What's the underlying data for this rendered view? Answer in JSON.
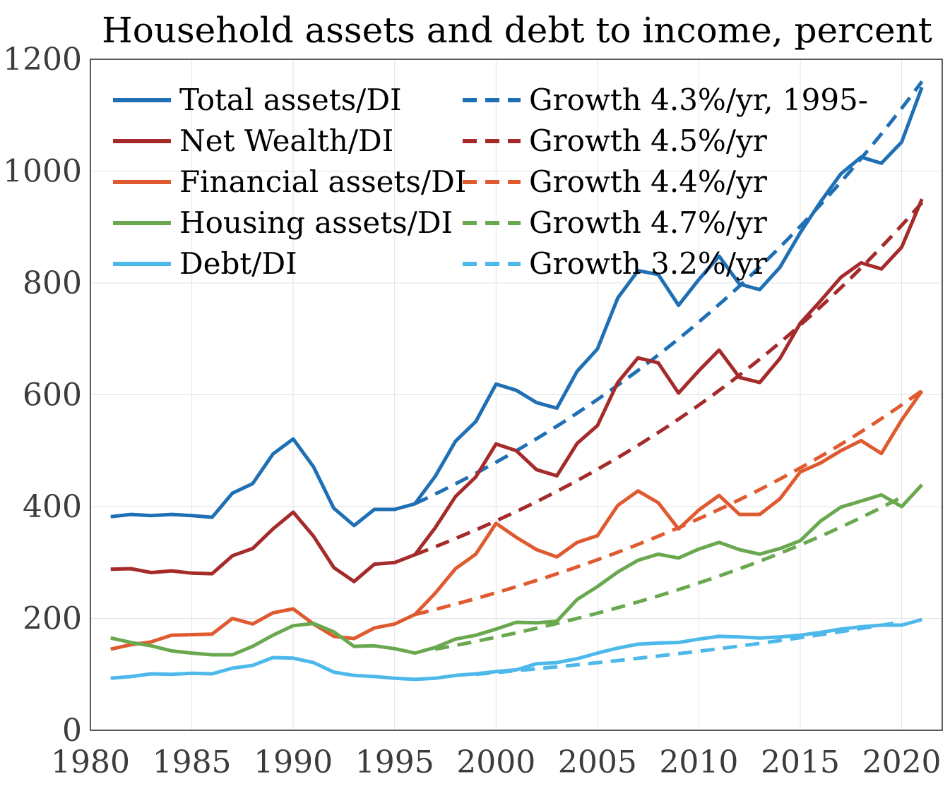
{
  "chart_data": {
    "type": "line",
    "title": "Household assets and debt to income, percent",
    "xlabel": "",
    "ylabel": "",
    "xlim": [
      1980,
      2022
    ],
    "ylim": [
      0,
      1200
    ],
    "xticks": [
      1980,
      1985,
      1990,
      1995,
      2000,
      2005,
      2010,
      2015,
      2020
    ],
    "yticks": [
      0,
      200,
      400,
      600,
      800,
      1000,
      1200
    ],
    "grid": true,
    "legend_position": "top-left",
    "years": [
      1981,
      1982,
      1983,
      1984,
      1985,
      1986,
      1987,
      1988,
      1989,
      1990,
      1991,
      1992,
      1993,
      1994,
      1995,
      1996,
      1997,
      1998,
      1999,
      2000,
      2001,
      2002,
      2003,
      2004,
      2005,
      2006,
      2007,
      2008,
      2009,
      2010,
      2011,
      2012,
      2013,
      2014,
      2015,
      2016,
      2017,
      2018,
      2019,
      2020,
      2021
    ],
    "series": [
      {
        "name": "Total assets/DI",
        "color": "#1f6fb5",
        "values": [
          382,
          386,
          384,
          386,
          384,
          381,
          424,
          441,
          494,
          521,
          471,
          397,
          366,
          395,
          395,
          405,
          454,
          517,
          552,
          619,
          608,
          586,
          576,
          642,
          682,
          773,
          822,
          815,
          760,
          806,
          848,
          798,
          788,
          828,
          890,
          945,
          995,
          1025,
          1014,
          1052,
          1150
        ]
      },
      {
        "name": "Net Wealth/DI",
        "color": "#a52a2a",
        "values": [
          288,
          289,
          282,
          285,
          281,
          280,
          312,
          325,
          360,
          390,
          347,
          291,
          266,
          297,
          300,
          314,
          362,
          418,
          453,
          512,
          500,
          466,
          455,
          513,
          545,
          622,
          666,
          657,
          603,
          643,
          680,
          631,
          622,
          665,
          728,
          768,
          810,
          836,
          825,
          864,
          950
        ]
      },
      {
        "name": "Financial assets/DI",
        "color": "#e05a30",
        "values": [
          145,
          153,
          158,
          170,
          171,
          172,
          200,
          190,
          210,
          217,
          190,
          168,
          164,
          183,
          190,
          207,
          245,
          289,
          315,
          370,
          345,
          323,
          310,
          336,
          348,
          402,
          428,
          407,
          360,
          394,
          420,
          386,
          386,
          414,
          462,
          478,
          500,
          518,
          495,
          555,
          607
        ]
      },
      {
        "name": "Housing assets/DI",
        "color": "#6aa84f",
        "values": [
          165,
          157,
          151,
          142,
          138,
          135,
          135,
          150,
          170,
          187,
          191,
          176,
          150,
          151,
          146,
          138,
          148,
          163,
          170,
          181,
          193,
          192,
          195,
          234,
          257,
          283,
          304,
          315,
          308,
          324,
          336,
          323,
          315,
          325,
          339,
          374,
          399,
          410,
          421,
          400,
          439
        ]
      },
      {
        "name": "Debt/DI",
        "color": "#4db9ea",
        "values": [
          93,
          96,
          101,
          100,
          102,
          101,
          111,
          116,
          130,
          129,
          121,
          104,
          98,
          96,
          93,
          91,
          93,
          98,
          101,
          105,
          108,
          119,
          121,
          128,
          138,
          147,
          154,
          156,
          157,
          163,
          168,
          167,
          165,
          167,
          170,
          175,
          181,
          185,
          188,
          188,
          198
        ]
      }
    ],
    "trend_lines": [
      {
        "name": "Growth 4.3%/yr, 1995-",
        "color": "#1f6fb5",
        "x": [
          1996,
          2021
        ],
        "start": 405,
        "rate_pct": 4.3
      },
      {
        "name": "Growth 4.5%/yr",
        "color": "#a52a2a",
        "x": [
          1996,
          2021
        ],
        "start": 314,
        "rate_pct": 4.5
      },
      {
        "name": "Growth 4.4%/yr",
        "color": "#e05a30",
        "x": [
          1996,
          2021
        ],
        "start": 207,
        "rate_pct": 4.4
      },
      {
        "name": "Growth 4.7%/yr",
        "color": "#6aa84f",
        "x": [
          1997,
          2020
        ],
        "start": 145,
        "rate_pct": 4.7
      },
      {
        "name": "Growth 3.2%/yr",
        "color": "#4db9ea",
        "x": [
          1999,
          2020
        ],
        "start": 100,
        "rate_pct": 3.2
      }
    ]
  }
}
